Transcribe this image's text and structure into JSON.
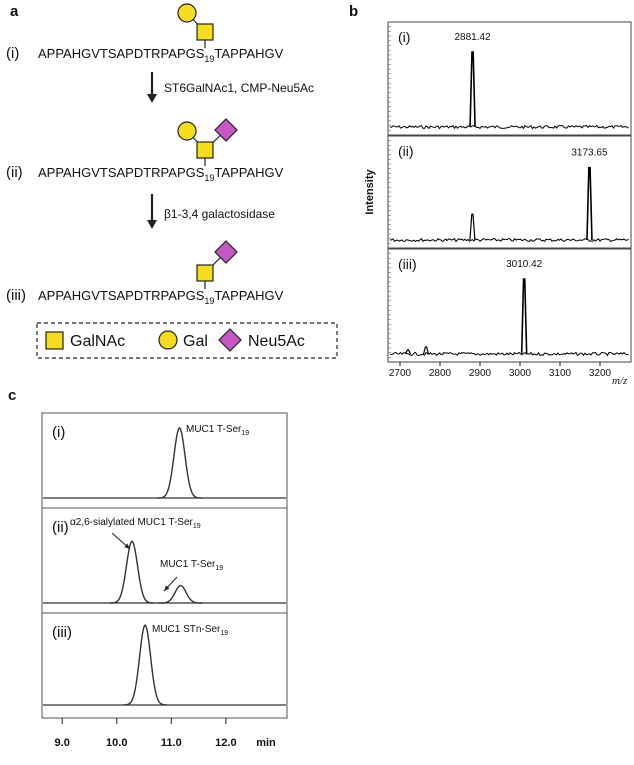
{
  "panel_a": {
    "label": "a",
    "steps": [
      {
        "numeral": "(i)",
        "sequence": {
          "before": "APPAHGVTSAPDTRPAPGS",
          "sub": "19",
          "after": "TAPPAHGV"
        }
      },
      {
        "numeral": "(ii)",
        "sequence": {
          "before": "APPAHGVTSAPDTRPAPGS",
          "sub": "19",
          "after": "TAPPAHGV"
        }
      },
      {
        "numeral": "(iii)",
        "sequence": {
          "before": "APPAHGVTSAPDTRPAPGS",
          "sub": "19",
          "after": "TAPPAHGV"
        }
      }
    ],
    "reactions": [
      "ST6GalNAc1, CMP-Neu5Ac",
      "β1-3,4 galactosidase"
    ],
    "legend": [
      "GalNAc",
      "Gal",
      "Neu5Ac"
    ]
  },
  "chart_data": [
    {
      "type": "spectrum",
      "label": "b",
      "ylabel": "Intensity",
      "xlabel": "m/z",
      "xlim": [
        2670,
        3280
      ],
      "xticks": [
        2700,
        2800,
        2900,
        3000,
        3100,
        3200
      ],
      "ylim": [
        0,
        100
      ],
      "color": "#000000",
      "panels": [
        {
          "label": "(i)",
          "peak": {
            "x": 2881.42,
            "value": 75
          }
        },
        {
          "label": "(ii)",
          "peak": {
            "x": 3173.65,
            "value": 73
          },
          "minor_peaks": {
            "x": [
              2881
            ],
            "values": [
              26
            ]
          }
        },
        {
          "label": "(iii)",
          "peak": {
            "x": 3010.42,
            "value": 75
          },
          "minor_peaks": {
            "x": [
              2720,
              2765
            ],
            "values": [
              4,
              7
            ]
          }
        }
      ]
    },
    {
      "type": "chromatogram",
      "label": "c",
      "xlabel": "min",
      "xlim": [
        8.63,
        13.12
      ],
      "xticks": [
        {
          "value": 9,
          "label": "9.0"
        },
        {
          "value": 10,
          "label": "10.0"
        },
        {
          "value": 11,
          "label": "11.0"
        },
        {
          "value": 12,
          "label": "12.0"
        }
      ],
      "ylim": [
        0,
        100
      ],
      "color": "#333333",
      "panels": [
        {
          "label": "(i)",
          "peaks": {
            "x": [
              11.15
            ],
            "values": [
              91
            ]
          },
          "annotations": [
            {
              "text": "MUC1 T-Ser",
              "sub": "19"
            }
          ]
        },
        {
          "label": "(ii)",
          "peaks": {
            "x": [
              10.28,
              11.17
            ],
            "values": [
              71,
              20
            ]
          },
          "annotations": [
            {
              "text": "α2,6-sialylated MUC1 T-Ser",
              "sub": "19"
            },
            {
              "text": "MUC1 T-Ser",
              "sub": "19"
            }
          ]
        },
        {
          "label": "(iii)",
          "peaks": {
            "x": [
              10.52
            ],
            "values": [
              95
            ]
          },
          "annotations": [
            {
              "text": "MUC1 STn-Ser",
              "sub": "19"
            }
          ]
        }
      ]
    }
  ]
}
